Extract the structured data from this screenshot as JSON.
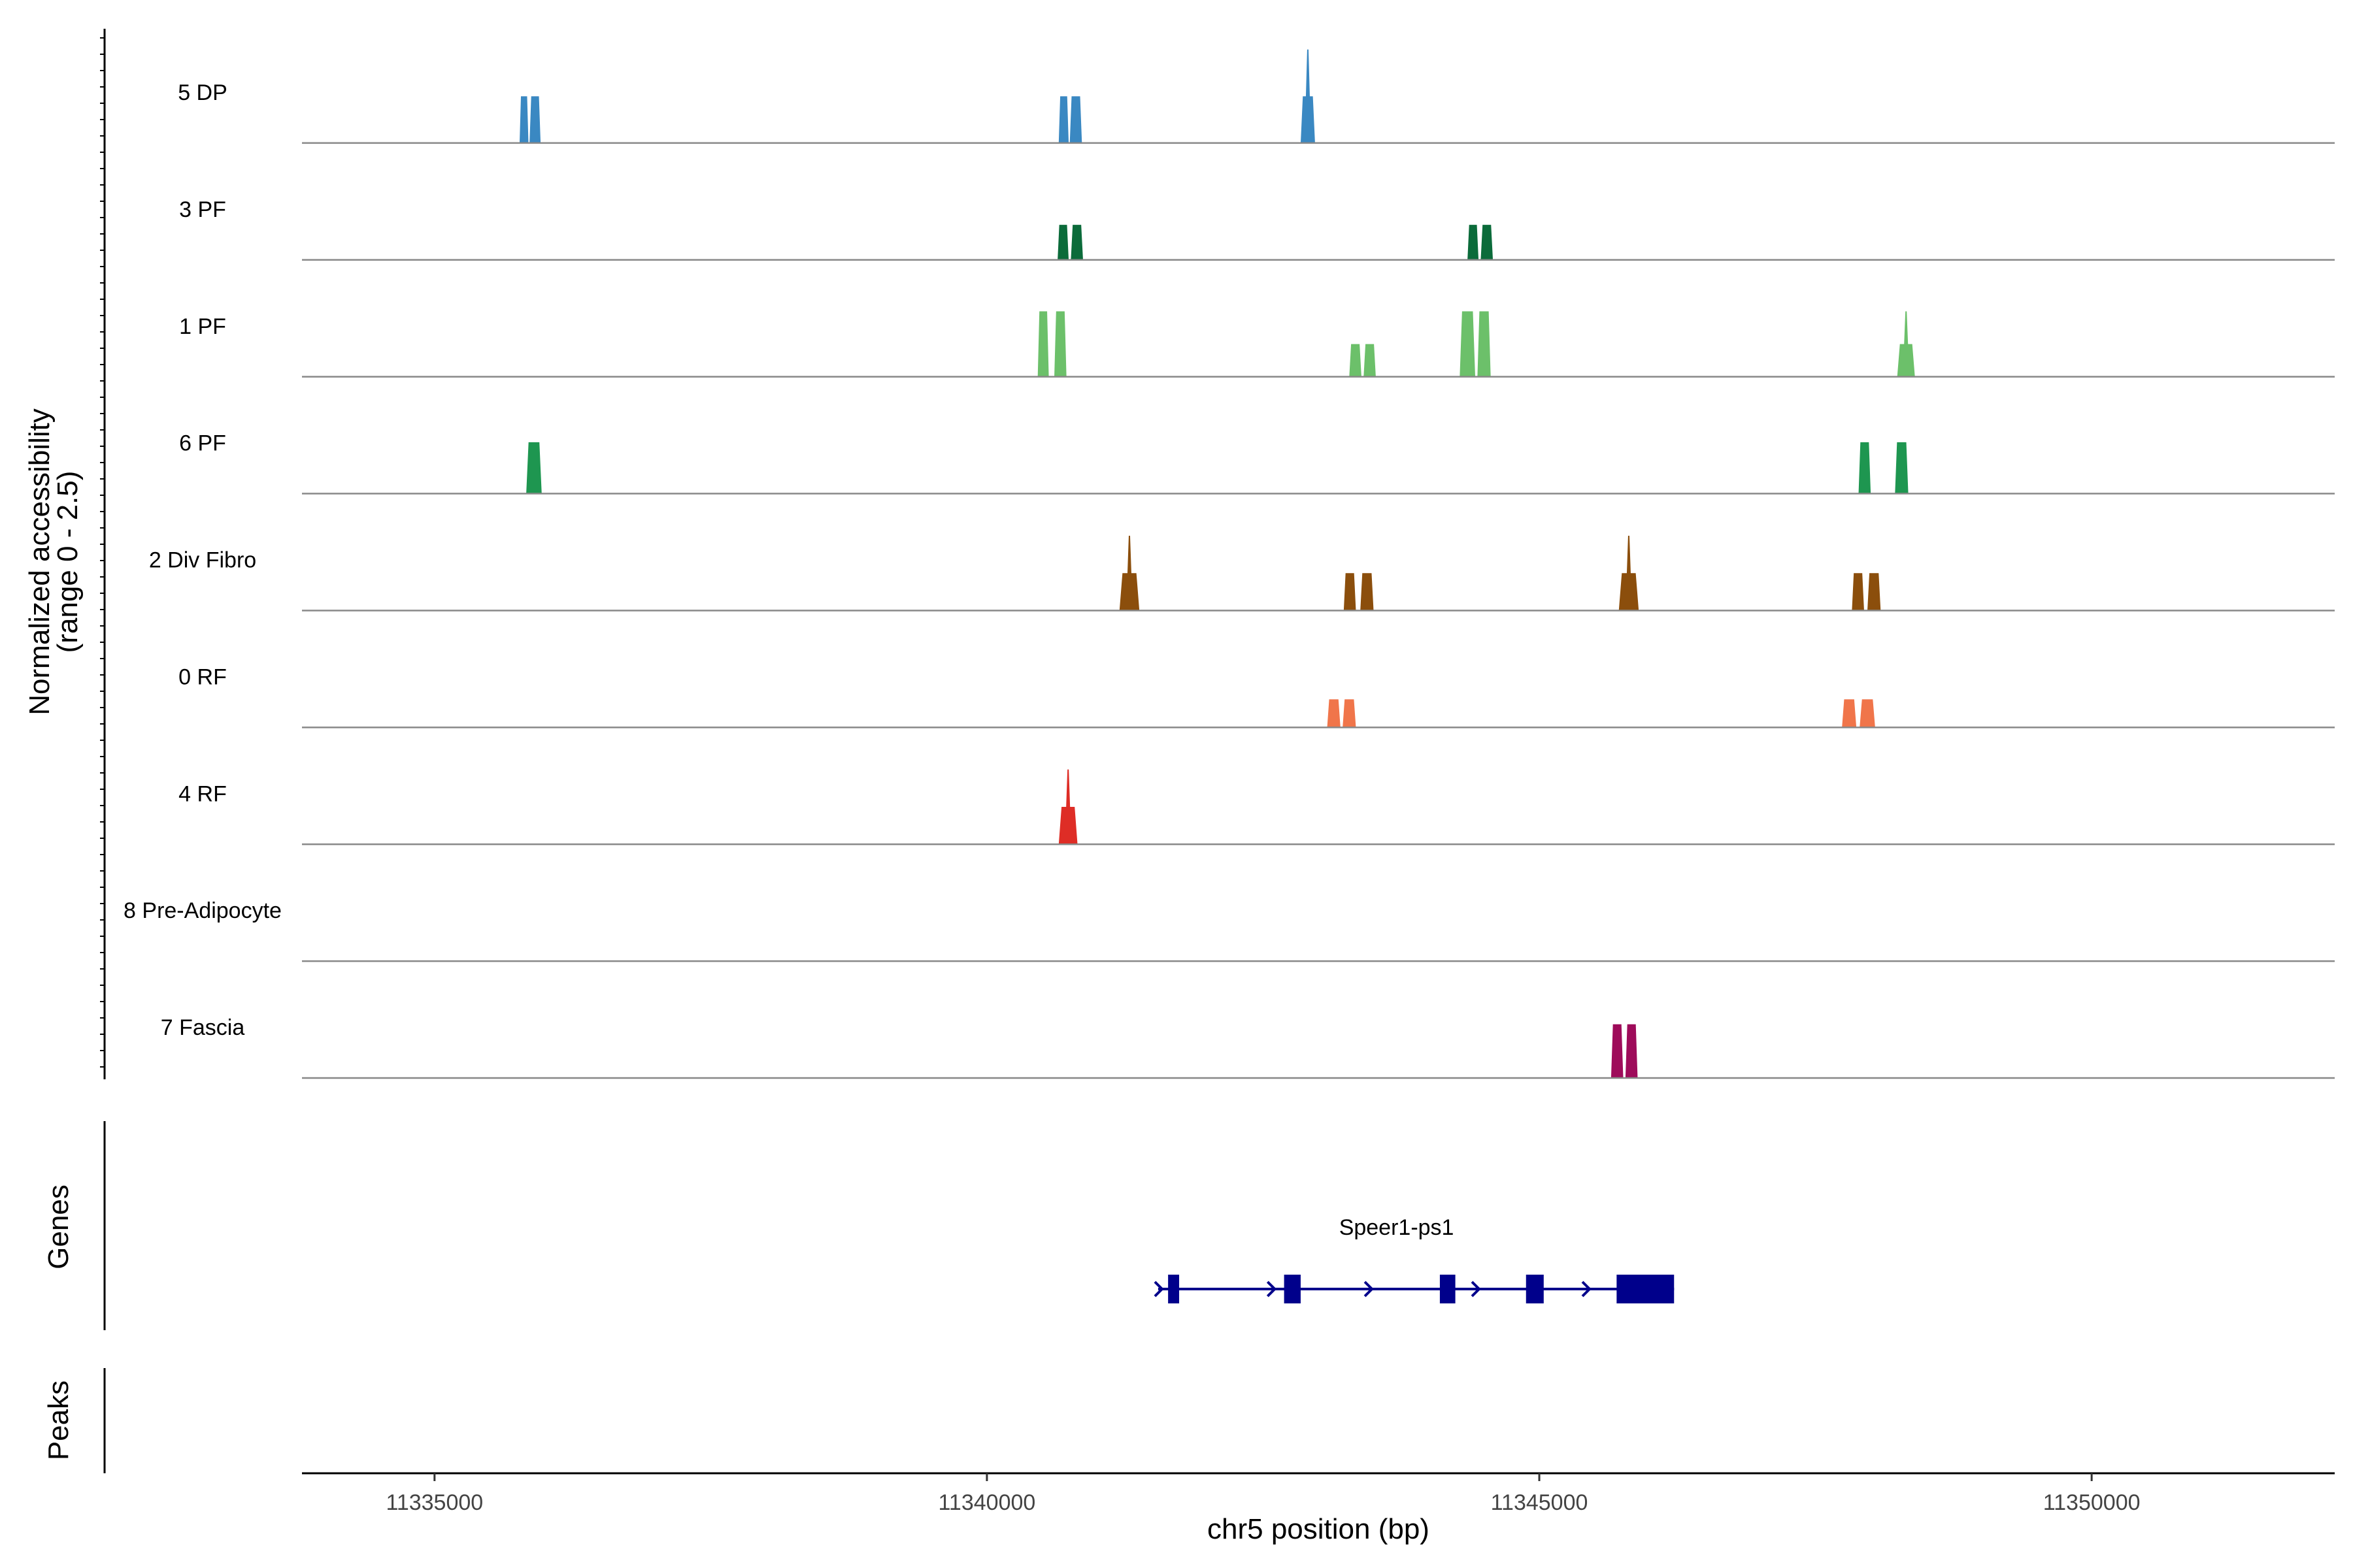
{
  "chart_data": {
    "type": "area",
    "ylabel_line1": "Normalized accessibility",
    "ylabel_line2": "(range 0 - 2.5)",
    "xlabel": "chr5 position (bp)",
    "xlim": [
      11333800,
      11352200
    ],
    "ylim": [
      0,
      2.5
    ],
    "xticks": [
      11335000,
      11340000,
      11345000,
      11350000
    ],
    "tracks": [
      {
        "name": "5 DP",
        "color": "#3A88C2",
        "peaks": [
          {
            "x0": 11335770,
            "x1": 11335850,
            "h": 1.0
          },
          {
            "x0": 11335860,
            "x1": 11335960,
            "h": 1.0
          },
          {
            "x0": 11340650,
            "x1": 11340740,
            "h": 1.0
          },
          {
            "x0": 11340750,
            "x1": 11340860,
            "h": 1.0
          },
          {
            "x0": 11342840,
            "x1": 11342970,
            "h": 1.0,
            "spike": 2.0
          }
        ]
      },
      {
        "name": "3 PF",
        "color": "#0B6B3A",
        "peaks": [
          {
            "x0": 11340640,
            "x1": 11340740,
            "h": 0.75
          },
          {
            "x0": 11340760,
            "x1": 11340870,
            "h": 0.75
          },
          {
            "x0": 11344350,
            "x1": 11344450,
            "h": 0.75
          },
          {
            "x0": 11344470,
            "x1": 11344580,
            "h": 0.75
          }
        ]
      },
      {
        "name": "1 PF",
        "color": "#6CC06A",
        "peaks": [
          {
            "x0": 11340460,
            "x1": 11340560,
            "h": 1.4
          },
          {
            "x0": 11340610,
            "x1": 11340720,
            "h": 1.4
          },
          {
            "x0": 11343280,
            "x1": 11343390,
            "h": 0.7
          },
          {
            "x0": 11343410,
            "x1": 11343520,
            "h": 0.7
          },
          {
            "x0": 11344280,
            "x1": 11344420,
            "h": 1.4
          },
          {
            "x0": 11344440,
            "x1": 11344560,
            "h": 1.4
          },
          {
            "x0": 11348240,
            "x1": 11348400,
            "h": 0.7,
            "spike": 1.4
          }
        ]
      },
      {
        "name": "6 PF",
        "color": "#1E9650",
        "peaks": [
          {
            "x0": 11335830,
            "x1": 11335970,
            "h": 1.1
          },
          {
            "x0": 11347890,
            "x1": 11348000,
            "h": 1.1
          },
          {
            "x0": 11348220,
            "x1": 11348340,
            "h": 1.1
          }
        ]
      },
      {
        "name": "2 Div Fibro",
        "color": "#8B4E0C",
        "peaks": [
          {
            "x0": 11341200,
            "x1": 11341380,
            "h": 0.8,
            "spike": 1.6
          },
          {
            "x0": 11343230,
            "x1": 11343340,
            "h": 0.8
          },
          {
            "x0": 11343380,
            "x1": 11343500,
            "h": 0.8
          },
          {
            "x0": 11345720,
            "x1": 11345900,
            "h": 0.8,
            "spike": 1.6
          },
          {
            "x0": 11347830,
            "x1": 11347940,
            "h": 0.8
          },
          {
            "x0": 11347970,
            "x1": 11348090,
            "h": 0.8
          }
        ]
      },
      {
        "name": "0 RF",
        "color": "#F0754A",
        "peaks": [
          {
            "x0": 11343080,
            "x1": 11343200,
            "h": 0.6
          },
          {
            "x0": 11343220,
            "x1": 11343340,
            "h": 0.6
          },
          {
            "x0": 11347740,
            "x1": 11347870,
            "h": 0.6
          },
          {
            "x0": 11347900,
            "x1": 11348040,
            "h": 0.6
          }
        ]
      },
      {
        "name": "4 RF",
        "color": "#DE2D26",
        "peaks": [
          {
            "x0": 11340650,
            "x1": 11340820,
            "h": 0.8,
            "spike": 1.6
          }
        ]
      },
      {
        "name": "8 Pre-Adipocyte",
        "color": "#6A51A3",
        "peaks": []
      },
      {
        "name": "7 Fascia",
        "color": "#9E0B5A",
        "peaks": [
          {
            "x0": 11345650,
            "x1": 11345760,
            "h": 1.15
          },
          {
            "x0": 11345780,
            "x1": 11345890,
            "h": 1.15
          }
        ]
      }
    ],
    "genes_label": "Genes",
    "peaks_label": "Peaks",
    "gene": {
      "name": "Speer1-ps1",
      "color": "#00008B",
      "start": 11341550,
      "end": 11346220,
      "exons": [
        {
          "x0": 11341640,
          "x1": 11341740
        },
        {
          "x0": 11342690,
          "x1": 11342840
        },
        {
          "x0": 11344100,
          "x1": 11344240
        },
        {
          "x0": 11344880,
          "x1": 11345040
        },
        {
          "x0": 11345700,
          "x1": 11346220
        }
      ],
      "arrows": [
        11341550,
        11342570,
        11343450,
        11344420,
        11345420
      ]
    }
  }
}
